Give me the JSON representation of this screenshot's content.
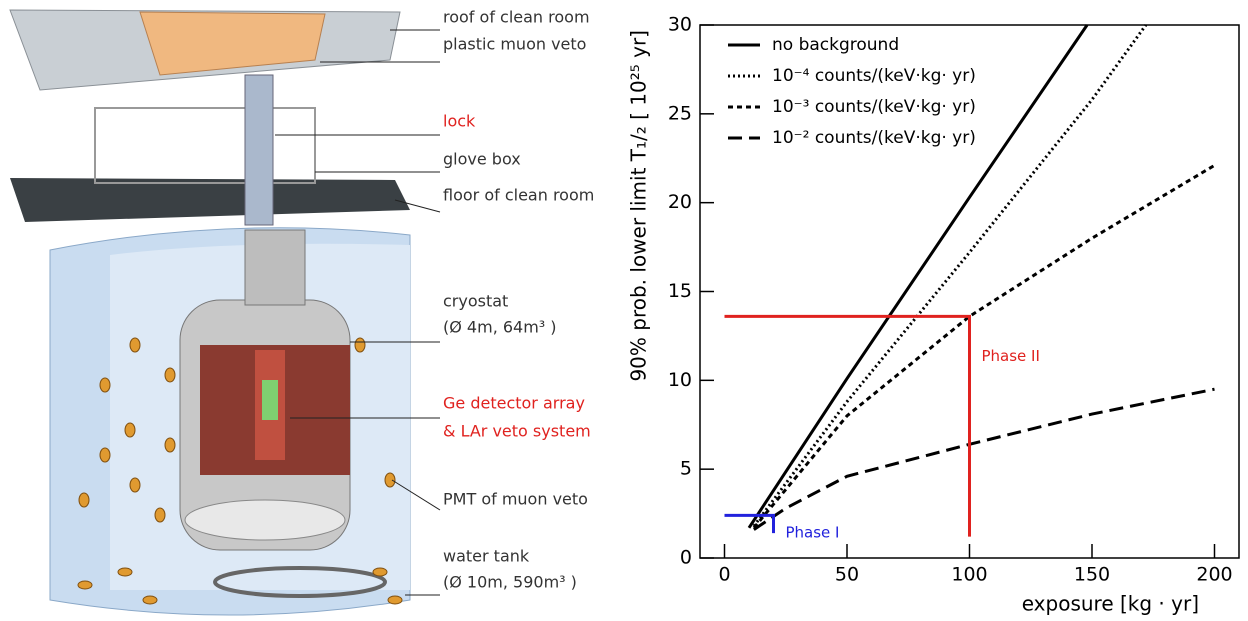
{
  "diagram": {
    "labels": [
      {
        "text": "roof of clean room",
        "color": "#333333"
      },
      {
        "text": "plastic muon veto",
        "color": "#333333"
      },
      {
        "text": "lock",
        "color": "#e0221f"
      },
      {
        "text": "glove box",
        "color": "#333333"
      },
      {
        "text": "floor of clean room",
        "color": "#333333"
      },
      {
        "text": "cryostat",
        "color": "#333333"
      },
      {
        "text": "(Ø 4m, 64m³ )",
        "color": "#333333"
      },
      {
        "text": "Ge detector array",
        "color": "#e0221f"
      },
      {
        "text": "& LAr veto system",
        "color": "#e0221f"
      },
      {
        "text": "PMT of muon veto",
        "color": "#333333"
      },
      {
        "text": "water tank",
        "color": "#333333"
      },
      {
        "text": "(Ø 10m, 590m³ )",
        "color": "#333333"
      }
    ]
  },
  "chart_data": {
    "type": "line",
    "xlabel": "exposure  [kg · yr]",
    "ylabel": "90% prob. lower limit  T₁/₂  [ 10²⁵ yr]",
    "xlim": [
      -10,
      210
    ],
    "ylim": [
      0,
      30
    ],
    "xticks": [
      0,
      50,
      100,
      150,
      200
    ],
    "yticks": [
      0,
      5,
      10,
      15,
      20,
      25,
      30
    ],
    "legend": "upper left",
    "series": [
      {
        "name": "no background",
        "color": "#000000",
        "style": "solid",
        "x": [
          10,
          50,
          100,
          148
        ],
        "values": [
          1.7,
          10.1,
          20.3,
          30
        ]
      },
      {
        "name": "10⁻⁴ counts/(keV·kg· yr)",
        "color": "#000000",
        "style": "dotted",
        "x": [
          12,
          50,
          100,
          150,
          172
        ],
        "values": [
          1.8,
          8.8,
          17.2,
          25.8,
          30
        ]
      },
      {
        "name": "10⁻³ counts/(keV·kg· yr)",
        "color": "#000000",
        "style": "dashed",
        "x": [
          12,
          50,
          100,
          150,
          200
        ],
        "values": [
          1.7,
          8.0,
          13.6,
          18.0,
          22.1
        ]
      },
      {
        "name": "10⁻² counts/(keV·kg· yr)",
        "color": "#000000",
        "style": "longdash",
        "x": [
          12,
          25,
          50,
          100,
          150,
          200
        ],
        "values": [
          1.6,
          2.8,
          4.6,
          6.4,
          8.1,
          9.5
        ]
      }
    ],
    "annotations": [
      {
        "text": "Phase II",
        "color": "#e0221f",
        "x": [
          0,
          100,
          100
        ],
        "values": [
          13.6,
          13.6,
          1.2
        ]
      },
      {
        "text": "Phase I",
        "color": "#2222dd",
        "x": [
          0,
          20,
          20
        ],
        "values": [
          2.4,
          2.4,
          1.4
        ]
      }
    ]
  }
}
